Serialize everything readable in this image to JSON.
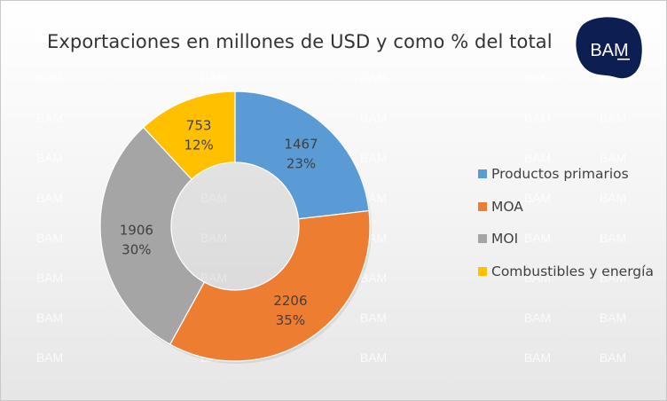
{
  "watermark_text": "BAM",
  "logo": {
    "text": "BAM",
    "color": "#0d1f52"
  },
  "chart_data": {
    "type": "pie",
    "donut": true,
    "title": "Exportaciones  en millones de USD y como % del total",
    "categories": [
      "Productos primarios",
      "MOA",
      "MOI",
      "Combustibles y energía"
    ],
    "values": [
      1467,
      2206,
      1906,
      753
    ],
    "percent_labels": [
      "23%",
      "35%",
      "30%",
      "12%"
    ],
    "colors": [
      "#5b9bd5",
      "#ed7d31",
      "#a5a5a5",
      "#ffc000"
    ],
    "legend_position": "right"
  }
}
